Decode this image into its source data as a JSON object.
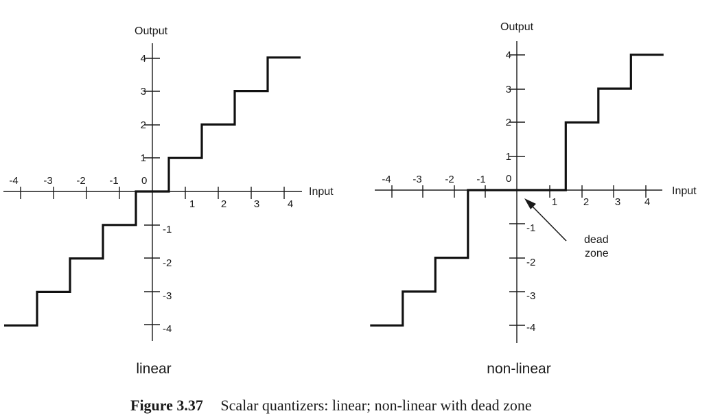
{
  "caption": {
    "label": "Figure 3.37",
    "text": "Scalar quantizers: linear; non-linear with dead zone"
  },
  "panels": [
    {
      "id": "linear",
      "title": "linear",
      "y_axis_label": "Output",
      "x_axis_label": "Input",
      "origin_label": "0",
      "x_tick_labels_negative": [
        "-4",
        "-3",
        "-2",
        "-1"
      ],
      "x_tick_labels_positive": [
        "1",
        "2",
        "3",
        "4"
      ],
      "y_tick_labels_positive": [
        "1",
        "2",
        "3",
        "4"
      ],
      "y_tick_labels_negative": [
        "-1",
        "-2",
        "-3",
        "-4"
      ]
    },
    {
      "id": "non-linear",
      "title": "non-linear",
      "y_axis_label": "Output",
      "x_axis_label": "Input",
      "origin_label": "0",
      "x_tick_labels_negative": [
        "-4",
        "-3",
        "-2",
        "-1"
      ],
      "x_tick_labels_positive": [
        "1",
        "2",
        "3",
        "4"
      ],
      "y_tick_labels_positive": [
        "1",
        "2",
        "3",
        "4"
      ],
      "y_tick_labels_negative": [
        "-1",
        "-2",
        "-3",
        "-4"
      ],
      "annotation": {
        "line1": "dead",
        "line2": "zone"
      }
    }
  ],
  "chart_data": [
    {
      "type": "line",
      "title": "linear",
      "xlabel": "Input",
      "ylabel": "Output",
      "xlim": [
        -4.5,
        4.5
      ],
      "ylim": [
        -4,
        4
      ],
      "step_breakpoints": [
        -4.5,
        -3.5,
        -2.5,
        -1.5,
        -0.5,
        0.5,
        1.5,
        2.5,
        3.5,
        4.5
      ],
      "step_levels": [
        -4,
        -3,
        -2,
        -1,
        0,
        1,
        2,
        3,
        4
      ]
    },
    {
      "type": "line",
      "title": "non-linear",
      "xlabel": "Input",
      "ylabel": "Output",
      "xlim": [
        -4.5,
        4.5
      ],
      "ylim": [
        -4,
        4
      ],
      "step_breakpoints": [
        -4.5,
        -3.5,
        -2.5,
        -1.5,
        1.5,
        2.5,
        3.5,
        4.5
      ],
      "step_levels": [
        -4,
        -3,
        -2,
        0,
        2,
        3,
        4
      ],
      "annotation": "dead zone"
    }
  ]
}
